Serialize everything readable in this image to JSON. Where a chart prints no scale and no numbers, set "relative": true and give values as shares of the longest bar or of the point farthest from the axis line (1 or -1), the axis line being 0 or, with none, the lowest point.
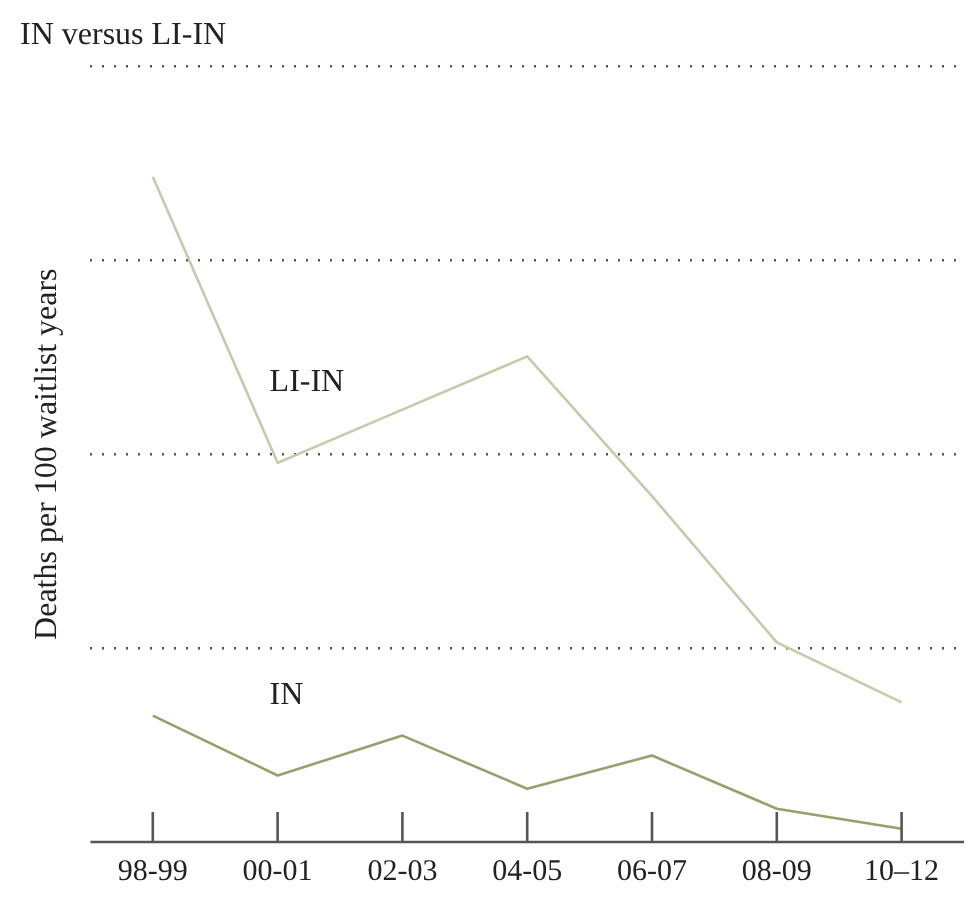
{
  "chart_data": {
    "type": "line",
    "title": "IN versus LI-IN",
    "ylabel": "Deaths per 100 waitlist years",
    "relative": true,
    "grid": "y",
    "legend": false,
    "marker": "none",
    "line_style": "solid",
    "categories": [
      "98-99",
      "00-01",
      "02-03",
      "04-05",
      "06-07",
      "08-09",
      "10–12"
    ],
    "series": [
      {
        "name": "LI-IN",
        "color": "#c8c8aa",
        "values": [
          1,
          0.57,
          0.65,
          0.73,
          0.52,
          0.3,
          0.21
        ]
      },
      {
        "name": "IN",
        "color": "#9c9c6c",
        "values": [
          0.19,
          0.1,
          0.16,
          0.08,
          0.13,
          0.05,
          0.02
        ]
      }
    ]
  }
}
